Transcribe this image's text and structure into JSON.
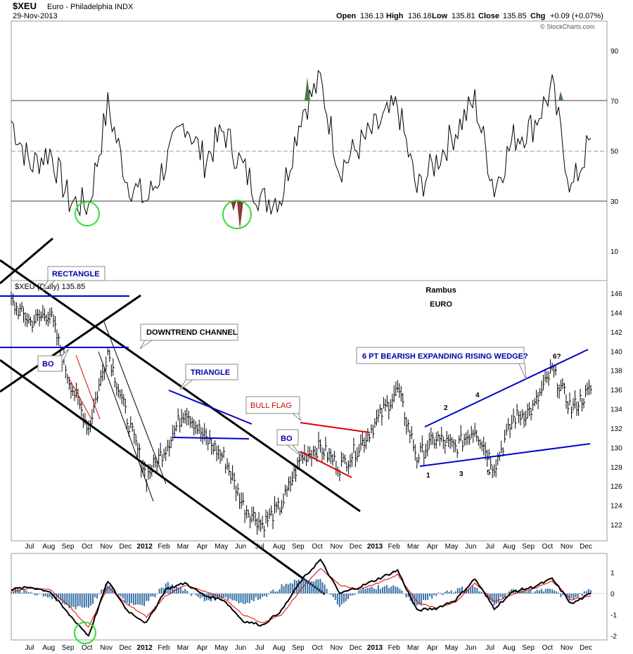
{
  "header": {
    "symbol": "$XEU",
    "name": "Euro - Philadelphia INDX",
    "date": "29-Nov-2013",
    "open_label": "Open",
    "open": "136.13",
    "high_label": "High",
    "high": "136.18",
    "low_label": "Low",
    "low": "135.81",
    "close_label": "Close",
    "close": "135.85",
    "chg_label": "Chg",
    "chg": "+0.09 (+0.07%)",
    "credit": "© StockCharts.com"
  },
  "colors": {
    "line": "#000000",
    "macd_signal": "#dd0000",
    "histogram": "#3a73a8",
    "pattern_blue": "#0000cc",
    "pattern_red": "#dd0000",
    "circle": "#33dd33",
    "rsi_overbought_fill": "#4a7a4a",
    "rsi_oversold_fill": "#8a3a3a"
  },
  "chart_data": [
    {
      "type": "line",
      "panel": "rsi",
      "title": "",
      "ylim": [
        0,
        100
      ],
      "y_ticks": [
        "90",
        "70",
        "50",
        "30",
        "10"
      ],
      "reference_lines": [
        70,
        50,
        30
      ],
      "grid": false,
      "series": [
        {
          "x": [
            "2011-06",
            "2011-07",
            "2011-08",
            "2011-09",
            "2011-10",
            "2011-11",
            "2011-12",
            "2012-01",
            "2012-02",
            "2012-03",
            "2012-04",
            "2012-05",
            "2012-06",
            "2012-07",
            "2012-08",
            "2012-09",
            "2012-10",
            "2012-11",
            "2012-12",
            "2013-01",
            "2013-02",
            "2013-03",
            "2013-04",
            "2013-05",
            "2013-06",
            "2013-07",
            "2013-08",
            "2013-09",
            "2013-10",
            "2013-11",
            "2013-12"
          ],
          "values": [
            62,
            44,
            50,
            30,
            28,
            68,
            38,
            30,
            45,
            62,
            46,
            58,
            43,
            30,
            32,
            65,
            78,
            43,
            52,
            60,
            68,
            34,
            46,
            58,
            70,
            35,
            55,
            60,
            75,
            34,
            55
          ]
        }
      ]
    },
    {
      "type": "line",
      "panel": "price",
      "title": "Rambus",
      "subtitle": "EURO",
      "legend": "$XEU (Daily) 135.85",
      "ylim": [
        120,
        147
      ],
      "y_ticks": [
        "146",
        "144",
        "142",
        "140",
        "138",
        "136",
        "134",
        "132",
        "130",
        "128",
        "126",
        "124",
        "122"
      ],
      "x_ticks": [
        "Jul",
        "Aug",
        "Sep",
        "Oct",
        "Nov",
        "Dec",
        "2012",
        "Feb",
        "Mar",
        "Apr",
        "May",
        "Jun",
        "Jul",
        "Aug",
        "Sep",
        "Oct",
        "Nov",
        "Dec",
        "2013",
        "Feb",
        "Mar",
        "Apr",
        "May",
        "Jun",
        "Jul",
        "Aug",
        "Sep",
        "Oct",
        "Nov",
        "Dec"
      ],
      "series": [
        {
          "name": "$XEU",
          "x": [
            "2011-06",
            "2011-07",
            "2011-08",
            "2011-09",
            "2011-10",
            "2011-11",
            "2011-12",
            "2012-01",
            "2012-02",
            "2012-03",
            "2012-04",
            "2012-05",
            "2012-06",
            "2012-07",
            "2012-08",
            "2012-09",
            "2012-10",
            "2012-11",
            "2012-12",
            "2013-01",
            "2013-02",
            "2013-03",
            "2013-04",
            "2013-05",
            "2013-06",
            "2013-07",
            "2013-08",
            "2013-09",
            "2013-10",
            "2013-11",
            "2013-12"
          ],
          "values": [
            145,
            143,
            144,
            137,
            132,
            140,
            133,
            127,
            130,
            134,
            131,
            129,
            124,
            122,
            124,
            129,
            130,
            128,
            130,
            133,
            136,
            129,
            131,
            130,
            132,
            128,
            133,
            134,
            138,
            134,
            136
          ]
        }
      ],
      "annotations": [
        "RECTANGLE",
        "BO",
        "DOWNTREND CHANNEL",
        "TRIANGLE",
        "BULL FLAG",
        "BO",
        "6 PT BEARISH EXPANDING RISING WEDGE?",
        "1",
        "2",
        "3",
        "4",
        "5",
        "6?"
      ]
    },
    {
      "type": "line",
      "panel": "macd",
      "title": "",
      "ylim": [
        -2,
        2
      ],
      "y_ticks": [
        "1",
        "0",
        "-1",
        "-2"
      ],
      "series": [
        {
          "x": [
            "2011-06",
            "2011-07",
            "2011-08",
            "2011-09",
            "2011-10",
            "2011-11",
            "2011-12",
            "2012-01",
            "2012-02",
            "2012-03",
            "2012-04",
            "2012-05",
            "2012-06",
            "2012-07",
            "2012-08",
            "2012-09",
            "2012-10",
            "2012-11",
            "2012-12",
            "2013-01",
            "2013-02",
            "2013-03",
            "2013-04",
            "2013-05",
            "2013-06",
            "2013-07",
            "2013-08",
            "2013-09",
            "2013-10",
            "2013-11",
            "2013-12"
          ],
          "values": [
            0.2,
            0.3,
            0.1,
            -1.0,
            -2.0,
            0.6,
            -0.8,
            -1.4,
            0.2,
            0.5,
            -0.1,
            -0.3,
            -1.3,
            -1.5,
            -0.8,
            0.6,
            1.6,
            0.0,
            0.3,
            0.7,
            1.1,
            -0.8,
            -0.7,
            -0.3,
            0.7,
            -0.7,
            0.1,
            0.3,
            0.7,
            -0.5,
            0.0
          ]
        },
        {
          "x": [
            "2011-06",
            "2011-07",
            "2011-08",
            "2011-09",
            "2011-10",
            "2011-11",
            "2011-12",
            "2012-01",
            "2012-02",
            "2012-03",
            "2012-04",
            "2012-05",
            "2012-06",
            "2012-07",
            "2012-08",
            "2012-09",
            "2012-10",
            "2012-11",
            "2012-12",
            "2013-01",
            "2013-02",
            "2013-03",
            "2013-04",
            "2013-05",
            "2013-06",
            "2013-07",
            "2013-08",
            "2013-09",
            "2013-10",
            "2013-11",
            "2013-12"
          ],
          "values": [
            0.1,
            0.25,
            0.2,
            -0.6,
            -1.6,
            0.3,
            -0.5,
            -1.1,
            -0.1,
            0.4,
            0.1,
            -0.2,
            -1.0,
            -1.4,
            -1.0,
            0.2,
            1.2,
            0.4,
            0.2,
            0.5,
            0.9,
            -0.4,
            -0.7,
            -0.4,
            0.5,
            -0.4,
            0.0,
            0.2,
            0.6,
            -0.3,
            -0.1
          ]
        }
      ]
    }
  ],
  "rsi_axis": [
    "90",
    "70",
    "50",
    "30",
    "10"
  ],
  "price_axis": [
    "146",
    "144",
    "142",
    "140",
    "138",
    "136",
    "134",
    "132",
    "130",
    "128",
    "126",
    "124",
    "122"
  ],
  "macd_axis": [
    "1",
    "0",
    "-1",
    "-2"
  ],
  "x_axis": [
    {
      "t": "Jul",
      "b": false
    },
    {
      "t": "Aug",
      "b": false
    },
    {
      "t": "Sep",
      "b": false
    },
    {
      "t": "Oct",
      "b": false
    },
    {
      "t": "Nov",
      "b": false
    },
    {
      "t": "Dec",
      "b": false
    },
    {
      "t": "2012",
      "b": true
    },
    {
      "t": "Feb",
      "b": false
    },
    {
      "t": "Mar",
      "b": false
    },
    {
      "t": "Apr",
      "b": false
    },
    {
      "t": "May",
      "b": false
    },
    {
      "t": "Jun",
      "b": false
    },
    {
      "t": "Jul",
      "b": false
    },
    {
      "t": "Aug",
      "b": false
    },
    {
      "t": "Sep",
      "b": false
    },
    {
      "t": "Oct",
      "b": false
    },
    {
      "t": "Nov",
      "b": false
    },
    {
      "t": "Dec",
      "b": false
    },
    {
      "t": "2013",
      "b": true
    },
    {
      "t": "Feb",
      "b": false
    },
    {
      "t": "Mar",
      "b": false
    },
    {
      "t": "Apr",
      "b": false
    },
    {
      "t": "May",
      "b": false
    },
    {
      "t": "Jun",
      "b": false
    },
    {
      "t": "Jul",
      "b": false
    },
    {
      "t": "Aug",
      "b": false
    },
    {
      "t": "Sep",
      "b": false
    },
    {
      "t": "Oct",
      "b": false
    },
    {
      "t": "Nov",
      "b": false
    },
    {
      "t": "Dec",
      "b": false
    }
  ],
  "price_legend": "$XEU (Daily) 135.85",
  "author": "Rambus",
  "subject": "EURO",
  "labels": {
    "rectangle": "RECTANGLE",
    "bo1": "BO",
    "downtrend": "DOWNTREND CHANNEL",
    "triangle": "TRIANGLE",
    "bullflag": "BULL FLAG",
    "bo2": "BO",
    "wedge": "6 PT BEARISH EXPANDING RISING WEDGE?",
    "pt1": "1",
    "pt2": "2",
    "pt3": "3",
    "pt4": "4",
    "pt5": "5",
    "pt6": "6?"
  }
}
